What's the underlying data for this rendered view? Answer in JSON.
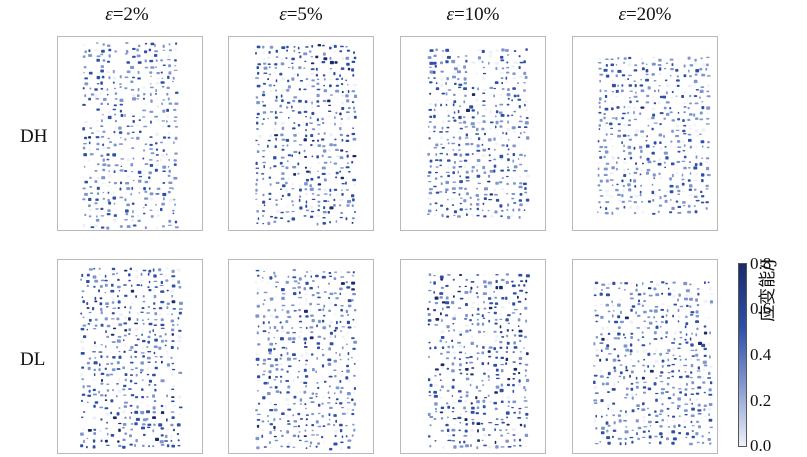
{
  "columns": [
    {
      "var": "ε",
      "text": "=2%",
      "strain": 2
    },
    {
      "var": "ε",
      "text": "=5%",
      "strain": 5
    },
    {
      "var": "ε",
      "text": "=10%",
      "strain": 10
    },
    {
      "var": "ε",
      "text": "=20%",
      "strain": 20
    }
  ],
  "rows": [
    {
      "label": "DH"
    },
    {
      "label": "DL"
    }
  ],
  "colorbar": {
    "title": "应变能/J",
    "ticks": [
      "0.8",
      "0.6",
      "0.4",
      "0.2",
      "0.0"
    ],
    "min": 0.0,
    "max": 0.8,
    "colors": [
      "#eef1f9",
      "#7f95cf",
      "#2f4fa8",
      "#1b2a6b"
    ]
  }
}
